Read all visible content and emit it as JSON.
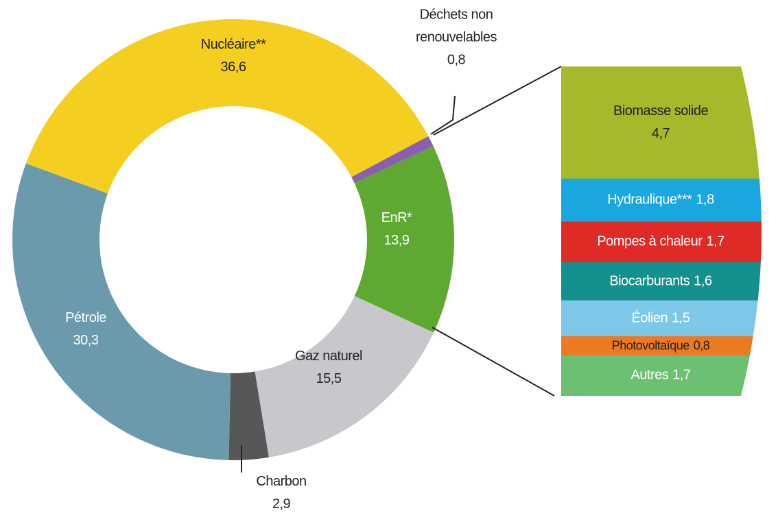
{
  "chart_data": [
    {
      "type": "pie",
      "categories": [
        "Déchets non renouvelables",
        "EnR*",
        "Gaz naturel",
        "Charbon",
        "Pétrole",
        "Nucléaire**"
      ],
      "values": [
        0.8,
        13.9,
        15.5,
        2.9,
        30.3,
        36.6
      ],
      "value_labels": [
        "0,8",
        "13,9",
        "15,5",
        "2,9",
        "30,3",
        "36,6"
      ],
      "colors": [
        "#8a5fb0",
        "#5fa832",
        "#c8c8cc",
        "#555758",
        "#6a9aac",
        "#f5cf1f"
      ]
    },
    {
      "type": "stack",
      "categories": [
        "Biomasse solide",
        "Hydraulique***",
        "Pompes à chaleur",
        "Biocarburants",
        "Éolien",
        "Photovoltaïque",
        "Autres"
      ],
      "values": [
        4.7,
        1.8,
        1.7,
        1.6,
        1.5,
        0.8,
        1.7
      ],
      "value_labels": [
        "4,7",
        "1,8",
        "1,7",
        "1,6",
        "1,5",
        "0,8",
        "1,7"
      ],
      "colors": [
        "#a6b92a",
        "#1aa6df",
        "#e02a26",
        "#14908e",
        "#7dc8e8",
        "#ec7a22",
        "#6cc072"
      ]
    }
  ]
}
